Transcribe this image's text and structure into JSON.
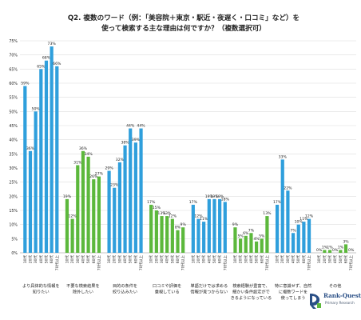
{
  "title_lines": [
    "Q2. 複数のワード（例：「美容院＋東京・駅近・夜遅く・口コミ」など）を",
    "使って検索する主な理由は何ですか？（複数選択可）"
  ],
  "colors": {
    "blue": "#2f9fdc",
    "green": "#5cb83c",
    "grid": "#dddddd",
    "text": "#222222"
  },
  "logo": {
    "name": "Rank-Quest",
    "sub": "Primary Research"
  },
  "chart_data": {
    "type": "bar",
    "ylim": [
      0,
      75
    ],
    "yticks": [
      0,
      5,
      10,
      15,
      20,
      25,
      30,
      35,
      40,
      45,
      50,
      55,
      60,
      65,
      70,
      75
    ],
    "ytick_suffix": "%",
    "grid": true,
    "age_labels": [
      "10代",
      "20代",
      "30代",
      "40代",
      "50代",
      "60代",
      "70代以上"
    ],
    "groups": [
      {
        "label_lines": [
          "より具体的な情報を",
          "知りたい"
        ],
        "color": "blue",
        "values": [
          59,
          36,
          50,
          65,
          68,
          73,
          66
        ]
      },
      {
        "label_lines": [
          "不要な検索結果を",
          "除外したい"
        ],
        "color": "green",
        "values": [
          19,
          12,
          31,
          36,
          34,
          26,
          27
        ]
      },
      {
        "label_lines": [
          "目的の条件を",
          "絞り込みたい"
        ],
        "color": "blue",
        "values": [
          29,
          23,
          32,
          38,
          44,
          39,
          44
        ]
      },
      {
        "label_lines": [
          "口コミや評価を",
          "重視している"
        ],
        "color": "green",
        "values": [
          17,
          15,
          13,
          13,
          12,
          8,
          9
        ]
      },
      {
        "label_lines": [
          "単語だけでは求める",
          "情報が見つからない"
        ],
        "color": "blue",
        "values": [
          17,
          12,
          11,
          19,
          19,
          19,
          18
        ]
      },
      {
        "label_lines": [
          "検索経験が豊富で、",
          "細かい条件設定がで",
          "きるようになっている"
        ],
        "color": "green",
        "values": [
          9,
          5,
          6,
          7,
          4,
          5,
          13
        ]
      },
      {
        "label_lines": [
          "特に意識せず、自然",
          "に複数ワードを",
          "使ってしまう"
        ],
        "color": "blue",
        "values": [
          17,
          33,
          22,
          7,
          10,
          11,
          12
        ]
      },
      {
        "label_lines": [
          "その他"
        ],
        "color": "green",
        "values": [
          0,
          1,
          1,
          0,
          1,
          3,
          0
        ]
      }
    ]
  }
}
